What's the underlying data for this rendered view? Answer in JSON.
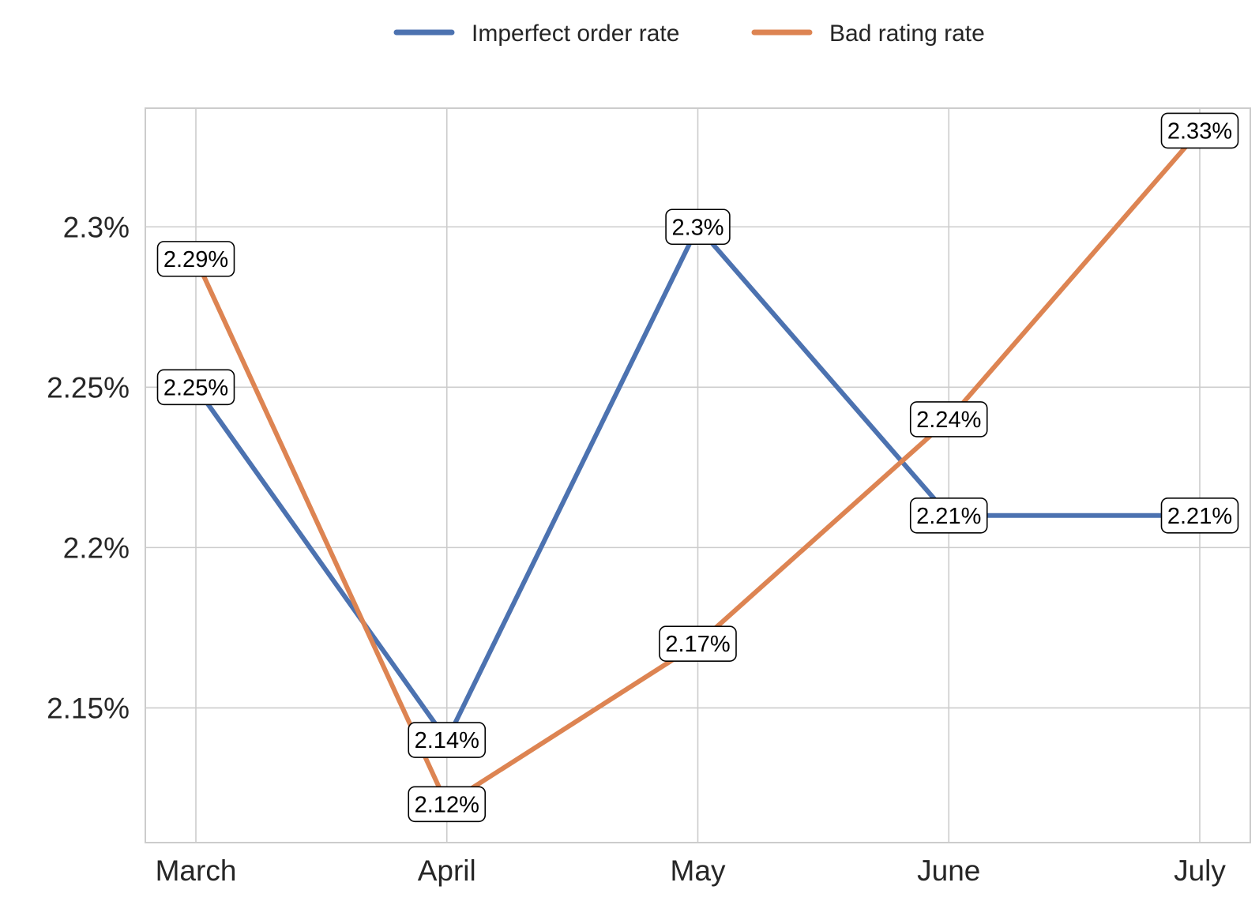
{
  "chart_data": {
    "type": "line",
    "categories": [
      "March",
      "April",
      "May",
      "June",
      "July"
    ],
    "series": [
      {
        "name": "Imperfect order rate",
        "color": "#4c72b0",
        "values": [
          2.25,
          2.14,
          2.3,
          2.21,
          2.21
        ],
        "labels": [
          "2.25%",
          "2.14%",
          "2.3%",
          "2.21%",
          "2.21%"
        ]
      },
      {
        "name": "Bad rating rate",
        "color": "#dd8452",
        "values": [
          2.29,
          2.12,
          2.17,
          2.24,
          2.33
        ],
        "labels": [
          "2.29%",
          "2.12%",
          "2.17%",
          "2.24%",
          "2.33%"
        ]
      }
    ],
    "y_ticks": [
      2.15,
      2.2,
      2.25,
      2.3
    ],
    "y_tick_labels": [
      "2.15%",
      "2.2%",
      "2.25%",
      "2.3%"
    ],
    "ylim": [
      2.108,
      2.337
    ],
    "grid": true,
    "legend_position": "top-center",
    "title": "",
    "xlabel": "",
    "ylabel": ""
  }
}
